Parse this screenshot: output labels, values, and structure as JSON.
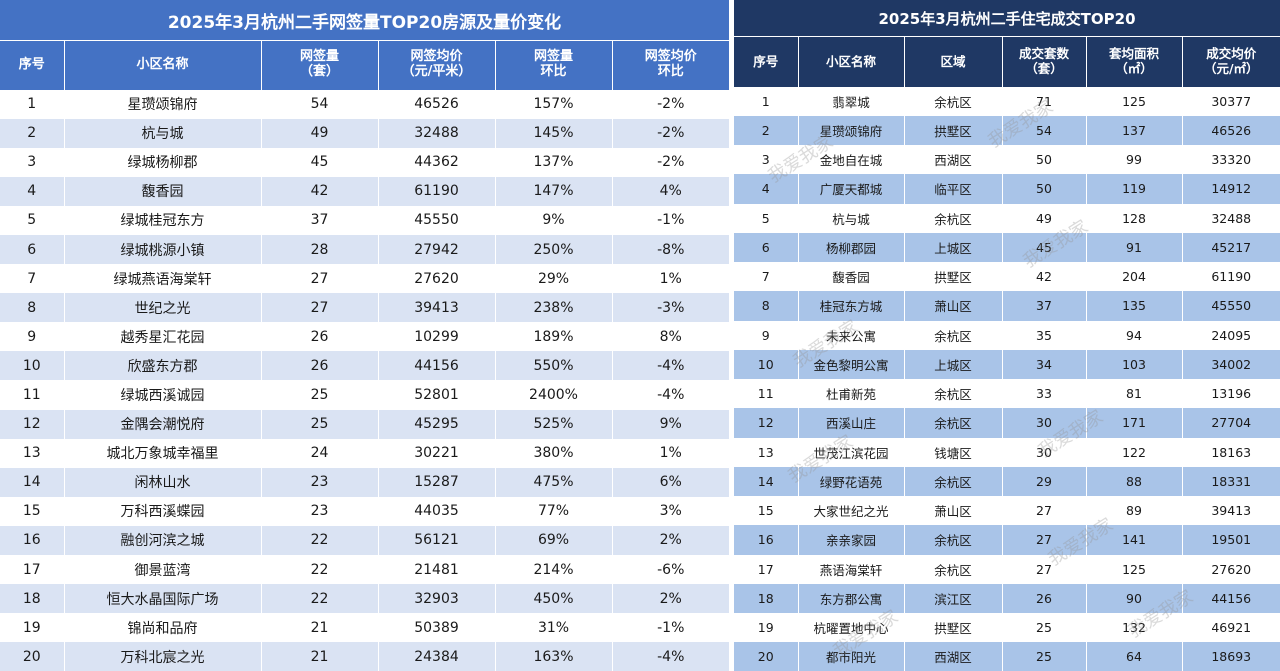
{
  "left": {
    "title": "2025年3月杭州二手网签量TOP20房源及量价变化",
    "headers": [
      {
        "line1": "序号",
        "line2": ""
      },
      {
        "line1": "小区名称",
        "line2": ""
      },
      {
        "line1": "网签量",
        "line2": "（套）"
      },
      {
        "line1": "网签均价",
        "line2": "（元/平米）"
      },
      {
        "line1": "网签量",
        "line2": "环比"
      },
      {
        "line1": "网签均价",
        "line2": "环比"
      }
    ],
    "rows": [
      [
        "1",
        "星瓒颂锦府",
        "54",
        "46526",
        "157%",
        "-2%"
      ],
      [
        "2",
        "杭与城",
        "49",
        "32488",
        "145%",
        "-2%"
      ],
      [
        "3",
        "绿城杨柳郡",
        "45",
        "44362",
        "137%",
        "-2%"
      ],
      [
        "4",
        "馥香园",
        "42",
        "61190",
        "147%",
        "4%"
      ],
      [
        "5",
        "绿城桂冠东方",
        "37",
        "45550",
        "9%",
        "-1%"
      ],
      [
        "6",
        "绿城桃源小镇",
        "28",
        "27942",
        "250%",
        "-8%"
      ],
      [
        "7",
        "绿城燕语海棠轩",
        "27",
        "27620",
        "29%",
        "1%"
      ],
      [
        "8",
        "世纪之光",
        "27",
        "39413",
        "238%",
        "-3%"
      ],
      [
        "9",
        "越秀星汇花园",
        "26",
        "10299",
        "189%",
        "8%"
      ],
      [
        "10",
        "欣盛东方郡",
        "26",
        "44156",
        "550%",
        "-4%"
      ],
      [
        "11",
        "绿城西溪诚园",
        "25",
        "52801",
        "2400%",
        "-4%"
      ],
      [
        "12",
        "金隅会潮悦府",
        "25",
        "45295",
        "525%",
        "9%"
      ],
      [
        "13",
        "城北万象城幸福里",
        "24",
        "30221",
        "380%",
        "1%"
      ],
      [
        "14",
        "闲林山水",
        "23",
        "15287",
        "475%",
        "6%"
      ],
      [
        "15",
        "万科西溪蝶园",
        "23",
        "44035",
        "77%",
        "3%"
      ],
      [
        "16",
        "融创河滨之城",
        "22",
        "56121",
        "69%",
        "2%"
      ],
      [
        "17",
        "御景蓝湾",
        "22",
        "21481",
        "214%",
        "-6%"
      ],
      [
        "18",
        "恒大水晶国际广场",
        "22",
        "32903",
        "450%",
        "2%"
      ],
      [
        "19",
        "锦尚和品府",
        "21",
        "50389",
        "31%",
        "-1%"
      ],
      [
        "20",
        "万科北宸之光",
        "21",
        "24384",
        "163%",
        "-4%"
      ]
    ]
  },
  "right": {
    "title": "2025年3月杭州二手住宅成交TOP20",
    "headers": [
      {
        "line1": "序号",
        "line2": ""
      },
      {
        "line1": "小区名称",
        "line2": ""
      },
      {
        "line1": "区域",
        "line2": ""
      },
      {
        "line1": "成交套数",
        "line2": "（套）"
      },
      {
        "line1": "套均面积",
        "line2": "（㎡）"
      },
      {
        "line1": "成交均价",
        "line2": "（元/㎡）"
      }
    ],
    "rows": [
      [
        "1",
        "翡翠城",
        "余杭区",
        "71",
        "125",
        "30377"
      ],
      [
        "2",
        "星瓒颂锦府",
        "拱墅区",
        "54",
        "137",
        "46526"
      ],
      [
        "3",
        "金地自在城",
        "西湖区",
        "50",
        "99",
        "33320"
      ],
      [
        "4",
        "广厦天都城",
        "临平区",
        "50",
        "119",
        "14912"
      ],
      [
        "5",
        "杭与城",
        "余杭区",
        "49",
        "128",
        "32488"
      ],
      [
        "6",
        "杨柳郡园",
        "上城区",
        "45",
        "91",
        "45217"
      ],
      [
        "7",
        "馥香园",
        "拱墅区",
        "42",
        "204",
        "61190"
      ],
      [
        "8",
        "桂冠东方城",
        "萧山区",
        "37",
        "135",
        "45550"
      ],
      [
        "9",
        "未来公寓",
        "余杭区",
        "35",
        "94",
        "24095"
      ],
      [
        "10",
        "金色黎明公寓",
        "上城区",
        "34",
        "103",
        "34002"
      ],
      [
        "11",
        "杜甫新苑",
        "余杭区",
        "33",
        "81",
        "13196"
      ],
      [
        "12",
        "西溪山庄",
        "余杭区",
        "30",
        "171",
        "27704"
      ],
      [
        "13",
        "世茂江滨花园",
        "钱塘区",
        "30",
        "122",
        "18163"
      ],
      [
        "14",
        "绿野花语苑",
        "余杭区",
        "29",
        "88",
        "18331"
      ],
      [
        "15",
        "大家世纪之光",
        "萧山区",
        "27",
        "89",
        "39413"
      ],
      [
        "16",
        "亲亲家园",
        "余杭区",
        "27",
        "141",
        "19501"
      ],
      [
        "17",
        "燕语海棠轩",
        "余杭区",
        "27",
        "125",
        "27620"
      ],
      [
        "18",
        "东方郡公寓",
        "滨江区",
        "26",
        "90",
        "44156"
      ],
      [
        "19",
        "杭曜置地中心",
        "拱墅区",
        "25",
        "132",
        "46921"
      ],
      [
        "20",
        "都市阳光",
        "西湖区",
        "25",
        "64",
        "18693"
      ]
    ],
    "watermark": "我爱我家"
  }
}
